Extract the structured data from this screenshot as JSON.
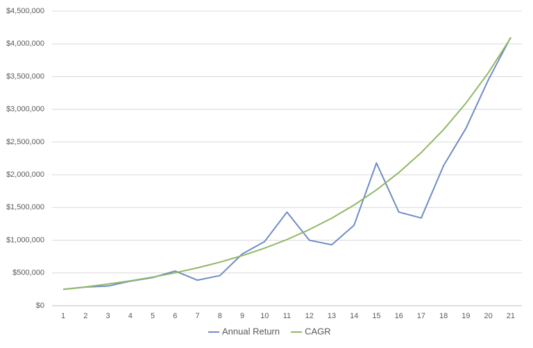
{
  "chart_data": {
    "type": "line",
    "categories": [
      "1",
      "2",
      "3",
      "4",
      "5",
      "6",
      "7",
      "8",
      "9",
      "10",
      "11",
      "12",
      "13",
      "14",
      "15",
      "16",
      "17",
      "18",
      "19",
      "20",
      "21"
    ],
    "series": [
      {
        "name": "Annual Return",
        "color": "#6f8bc6",
        "values": [
          250000,
          285000,
          300000,
          375000,
          430000,
          530000,
          390000,
          460000,
          790000,
          980000,
          1430000,
          1000000,
          930000,
          1230000,
          2180000,
          1430000,
          1340000,
          2140000,
          2710000,
          3450000,
          4100000
        ]
      },
      {
        "name": "CAGR",
        "color": "#8fb864",
        "values": [
          250000,
          287500,
          330600,
          380200,
          437300,
          502800,
          578300,
          665000,
          764800,
          879500,
          1011000,
          1163000,
          1337000,
          1538000,
          1769000,
          2034000,
          2339000,
          2690000,
          3094000,
          3558000,
          4091000
        ]
      }
    ],
    "ylim": [
      0,
      4500000
    ],
    "yticks": [
      {
        "value": 0,
        "label": "$0"
      },
      {
        "value": 500000,
        "label": "$500,000"
      },
      {
        "value": 1000000,
        "label": "$1,000,000"
      },
      {
        "value": 1500000,
        "label": "$1,500,000"
      },
      {
        "value": 2000000,
        "label": "$2,000,000"
      },
      {
        "value": 2500000,
        "label": "$2,500,000"
      },
      {
        "value": 3000000,
        "label": "$3,000,000"
      },
      {
        "value": 3500000,
        "label": "$3,500,000"
      },
      {
        "value": 4000000,
        "label": "$4,000,000"
      },
      {
        "value": 4500000,
        "label": "$4,500,000"
      }
    ],
    "grid": true,
    "legend": "bottom"
  }
}
